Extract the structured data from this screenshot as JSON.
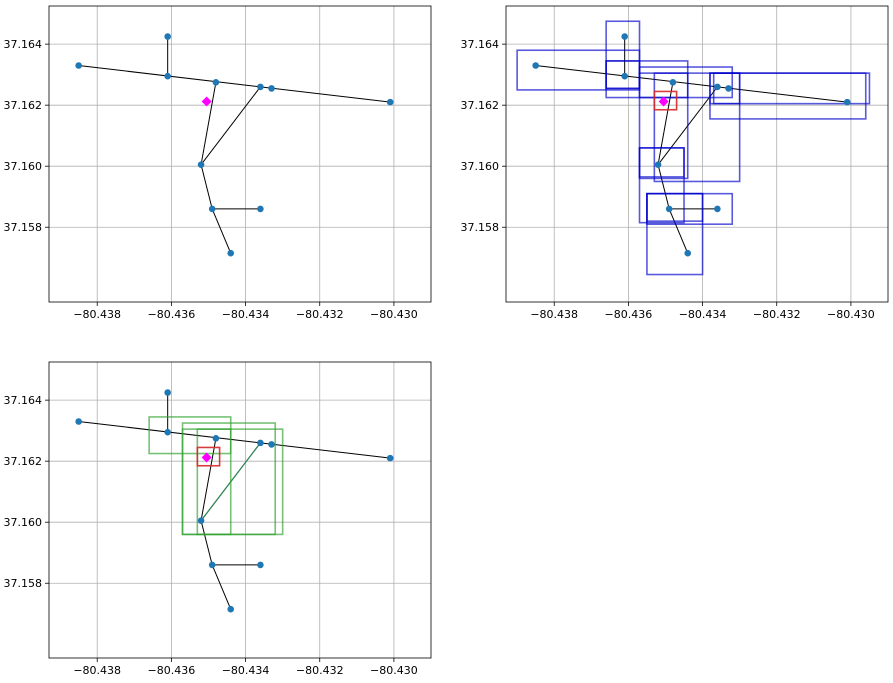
{
  "figure": {
    "name": "road-network-rtree-query-plots"
  },
  "chart_data": [
    {
      "type": "scatter",
      "panel": "top-left",
      "title": "",
      "xlabel": "",
      "ylabel": "",
      "xlim": [
        -80.4393,
        -80.429
      ],
      "ylim": [
        37.15555,
        37.16525
      ],
      "xticks": [
        -80.438,
        -80.436,
        -80.434,
        -80.432,
        -80.43
      ],
      "xtick_labels": [
        "−80.438",
        "−80.436",
        "−80.434",
        "−80.432",
        "−80.430"
      ],
      "yticks": [
        37.158,
        37.16,
        37.162,
        37.164
      ],
      "ytick_labels": [
        "37.158",
        "37.160",
        "37.162",
        "37.164"
      ],
      "grid": true,
      "nodes": [
        [
          -80.4361,
          37.16425
        ],
        [
          -80.4385,
          37.1633
        ],
        [
          -80.4361,
          37.16295
        ],
        [
          -80.4348,
          37.16275
        ],
        [
          -80.4336,
          37.1626
        ],
        [
          -80.4333,
          37.16255
        ],
        [
          -80.4301,
          37.1621
        ],
        [
          -80.4352,
          37.16005
        ],
        [
          -80.4349,
          37.1586
        ],
        [
          -80.4336,
          37.1586
        ],
        [
          -80.4344,
          37.15715
        ]
      ],
      "edges": [
        [
          [
            -80.4361,
            37.16425
          ],
          [
            -80.4361,
            37.16295
          ]
        ],
        [
          [
            -80.4385,
            37.1633
          ],
          [
            -80.4301,
            37.1621
          ]
        ],
        [
          [
            -80.4348,
            37.16275
          ],
          [
            -80.4352,
            37.16005
          ]
        ],
        [
          [
            -80.4352,
            37.16005
          ],
          [
            -80.4336,
            37.1626
          ]
        ],
        [
          [
            -80.4352,
            37.16005
          ],
          [
            -80.4349,
            37.1586
          ]
        ],
        [
          [
            -80.4349,
            37.1586
          ],
          [
            -80.4336,
            37.1586
          ]
        ],
        [
          [
            -80.4349,
            37.1586
          ],
          [
            -80.4344,
            37.15715
          ]
        ]
      ],
      "query_point": [
        -80.43505,
        37.16212
      ],
      "query_box": null,
      "bounding_boxes": [],
      "highlight_edges": []
    },
    {
      "type": "scatter",
      "panel": "top-right",
      "title": "",
      "xlabel": "",
      "ylabel": "",
      "xlim": [
        -80.4393,
        -80.429
      ],
      "ylim": [
        37.15555,
        37.16525
      ],
      "xticks": [
        -80.438,
        -80.436,
        -80.434,
        -80.432,
        -80.43
      ],
      "xtick_labels": [
        "−80.438",
        "−80.436",
        "−80.434",
        "−80.432",
        "−80.430"
      ],
      "yticks": [
        37.158,
        37.16,
        37.162,
        37.164
      ],
      "ytick_labels": [
        "37.158",
        "37.160",
        "37.162",
        "37.164"
      ],
      "grid": true,
      "nodes": [
        [
          -80.4361,
          37.16425
        ],
        [
          -80.4385,
          37.1633
        ],
        [
          -80.4361,
          37.16295
        ],
        [
          -80.4348,
          37.16275
        ],
        [
          -80.4336,
          37.1626
        ],
        [
          -80.4333,
          37.16255
        ],
        [
          -80.4301,
          37.1621
        ],
        [
          -80.4352,
          37.16005
        ],
        [
          -80.4349,
          37.1586
        ],
        [
          -80.4336,
          37.1586
        ],
        [
          -80.4344,
          37.15715
        ]
      ],
      "edges": [
        [
          [
            -80.4361,
            37.16425
          ],
          [
            -80.4361,
            37.16295
          ]
        ],
        [
          [
            -80.4385,
            37.1633
          ],
          [
            -80.4301,
            37.1621
          ]
        ],
        [
          [
            -80.4348,
            37.16275
          ],
          [
            -80.4352,
            37.16005
          ]
        ],
        [
          [
            -80.4352,
            37.16005
          ],
          [
            -80.4336,
            37.1626
          ]
        ],
        [
          [
            -80.4352,
            37.16005
          ],
          [
            -80.4349,
            37.1586
          ]
        ],
        [
          [
            -80.4349,
            37.1586
          ],
          [
            -80.4336,
            37.1586
          ]
        ],
        [
          [
            -80.4349,
            37.1586
          ],
          [
            -80.4344,
            37.15715
          ]
        ]
      ],
      "query_point": [
        -80.43505,
        37.16212
      ],
      "query_box": [
        -80.4353,
        37.16185,
        -80.4347,
        37.16245
      ],
      "bounding_boxes": [
        [
          -80.4366,
          37.16255,
          -80.4357,
          37.16475
        ],
        [
          -80.439,
          37.1625,
          -80.4357,
          37.1638
        ],
        [
          -80.4366,
          37.16225,
          -80.4344,
          37.16345
        ],
        [
          -80.4366,
          37.16255,
          -80.4357,
          37.16345
        ],
        [
          -80.4357,
          37.16225,
          -80.4332,
          37.16325
        ],
        [
          -80.4357,
          37.1596,
          -80.4344,
          37.16305
        ],
        [
          -80.4353,
          37.1595,
          -80.433,
          37.16305
        ],
        [
          -80.4337,
          37.16205,
          -80.4295,
          37.16305
        ],
        [
          -80.4338,
          37.16155,
          -80.4296,
          37.16305
        ],
        [
          -80.4338,
          37.16205,
          -80.433,
          37.16305
        ],
        [
          -80.4357,
          37.15965,
          -80.4345,
          37.1606
        ],
        [
          -80.4357,
          37.15815,
          -80.4345,
          37.1606
        ],
        [
          -80.4355,
          37.1581,
          -80.4332,
          37.1591
        ],
        [
          -80.4355,
          37.1582,
          -80.434,
          37.1591
        ],
        [
          -80.4355,
          37.15645,
          -80.434,
          37.1591
        ]
      ],
      "highlight_edges": []
    },
    {
      "type": "scatter",
      "panel": "bottom-left",
      "title": "",
      "xlabel": "",
      "ylabel": "",
      "xlim": [
        -80.4393,
        -80.429
      ],
      "ylim": [
        37.15555,
        37.16525
      ],
      "xticks": [
        -80.438,
        -80.436,
        -80.434,
        -80.432,
        -80.43
      ],
      "xtick_labels": [
        "−80.438",
        "−80.436",
        "−80.434",
        "−80.432",
        "−80.430"
      ],
      "yticks": [
        37.158,
        37.16,
        37.162,
        37.164
      ],
      "ytick_labels": [
        "37.158",
        "37.160",
        "37.162",
        "37.164"
      ],
      "grid": true,
      "nodes": [
        [
          -80.4361,
          37.16425
        ],
        [
          -80.4385,
          37.1633
        ],
        [
          -80.4361,
          37.16295
        ],
        [
          -80.4348,
          37.16275
        ],
        [
          -80.4336,
          37.1626
        ],
        [
          -80.4333,
          37.16255
        ],
        [
          -80.4301,
          37.1621
        ],
        [
          -80.4352,
          37.16005
        ],
        [
          -80.4349,
          37.1586
        ],
        [
          -80.4336,
          37.1586
        ],
        [
          -80.4344,
          37.15715
        ]
      ],
      "edges": [
        [
          [
            -80.4361,
            37.16425
          ],
          [
            -80.4361,
            37.16295
          ]
        ],
        [
          [
            -80.4385,
            37.1633
          ],
          [
            -80.4301,
            37.1621
          ]
        ],
        [
          [
            -80.4348,
            37.16275
          ],
          [
            -80.4352,
            37.16005
          ]
        ],
        [
          [
            -80.4352,
            37.16005
          ],
          [
            -80.4336,
            37.1626
          ]
        ],
        [
          [
            -80.4352,
            37.16005
          ],
          [
            -80.4349,
            37.1586
          ]
        ],
        [
          [
            -80.4349,
            37.1586
          ],
          [
            -80.4336,
            37.1586
          ]
        ],
        [
          [
            -80.4349,
            37.1586
          ],
          [
            -80.4344,
            37.15715
          ]
        ]
      ],
      "query_point": [
        -80.43505,
        37.16212
      ],
      "query_box": [
        -80.4353,
        37.16185,
        -80.4347,
        37.16245
      ],
      "bounding_boxes": [
        [
          -80.4366,
          37.16225,
          -80.4344,
          37.16345
        ],
        [
          -80.4357,
          37.1596,
          -80.4344,
          37.16305
        ],
        [
          -80.4357,
          37.1596,
          -80.4332,
          37.16325
        ],
        [
          -80.4353,
          37.1596,
          -80.433,
          37.16305
        ]
      ],
      "highlight_edges": [
        [
          [
            -80.4352,
            37.16005
          ],
          [
            -80.4336,
            37.1626
          ]
        ]
      ]
    }
  ],
  "styles": {
    "background": "#ffffff",
    "grid_color": "#b0b0b0",
    "edge_color": "#000000",
    "node_color": "#1f77b4",
    "query_color": "#ff00ff",
    "query_box_color": "#d62728",
    "rtree_box_color": "#0000cc",
    "match_box_color": "#2ca02c",
    "highlight_edge_color": "#2e8b57"
  }
}
